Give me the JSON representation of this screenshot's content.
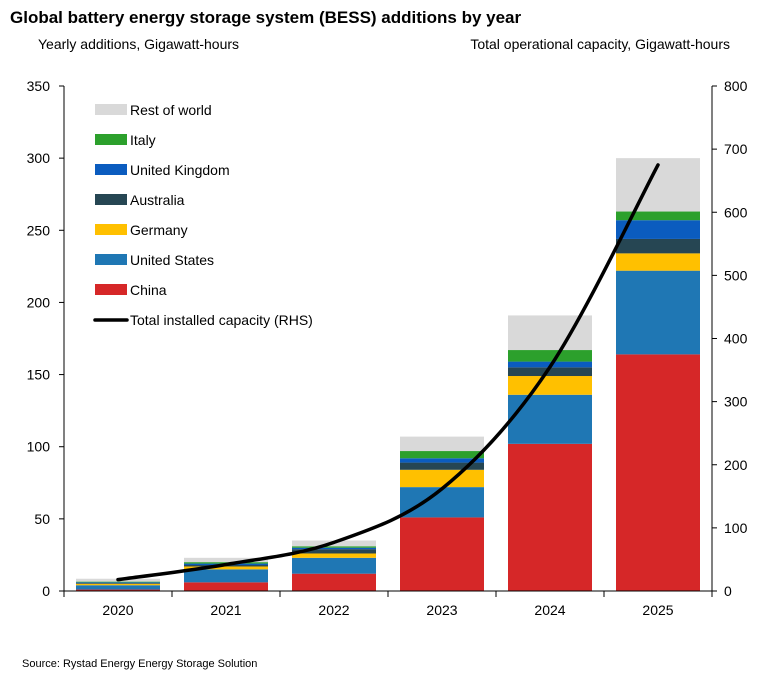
{
  "title": "Global battery energy storage system (BESS) additions by year",
  "subtitle_left": "Yearly additions, Gigawatt-hours",
  "subtitle_right": "Total operational capacity, Gigawatt-hours",
  "source": "Source: Rystad Energy Energy Storage Solution",
  "chart_data": {
    "type": "bar",
    "stacked": true,
    "title": "Global battery energy storage system (BESS) additions by year",
    "ylabel": "Yearly additions, Gigawatt-hours",
    "y2label": "Total operational capacity, Gigawatt-hours",
    "categories": [
      "2020",
      "2021",
      "2022",
      "2023",
      "2024",
      "2025"
    ],
    "ylim": [
      0,
      350
    ],
    "yticks": [
      0,
      50,
      100,
      150,
      200,
      250,
      300,
      350
    ],
    "y2lim": [
      0,
      800
    ],
    "y2ticks": [
      0,
      100,
      200,
      300,
      400,
      500,
      600,
      700,
      800
    ],
    "legend_position": "top-left",
    "series": [
      {
        "name": "China",
        "color": "#d62728",
        "values": [
          1,
          6,
          12,
          51,
          102,
          164
        ]
      },
      {
        "name": "United States",
        "color": "#1f77b4",
        "values": [
          3,
          9,
          11,
          21,
          34,
          58
        ]
      },
      {
        "name": "Germany",
        "color": "#ffc000",
        "values": [
          1,
          2,
          3,
          12,
          13,
          12
        ]
      },
      {
        "name": "Australia",
        "color": "#264653",
        "values": [
          0.5,
          1,
          3,
          5,
          6,
          10
        ]
      },
      {
        "name": "United Kingdom",
        "color": "#0b5cbf",
        "values": [
          0.5,
          1,
          1,
          3,
          4,
          13
        ]
      },
      {
        "name": "Italy",
        "color": "#2ca02c",
        "values": [
          0.5,
          1,
          1,
          5,
          8,
          6
        ]
      },
      {
        "name": "Rest of world",
        "color": "#d9d9d9",
        "values": [
          2,
          3,
          4,
          10,
          24,
          37
        ]
      }
    ],
    "line": {
      "name": "Total installed capacity (RHS)",
      "axis": "right",
      "color": "#000000",
      "x": [
        "2020",
        "2021",
        "2022",
        "2023",
        "2024",
        "2025"
      ],
      "values": [
        18,
        42,
        77,
        162,
        355,
        675
      ]
    }
  }
}
